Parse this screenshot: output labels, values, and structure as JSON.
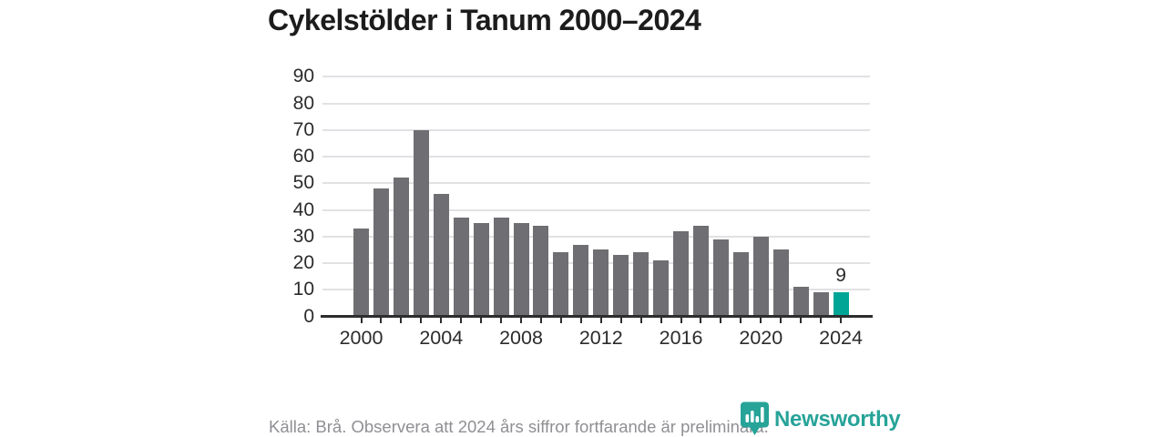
{
  "title": "Cykelstölder i Tanum 2000–2024",
  "footer": {
    "source_note": "Källa: Brå. Observera att 2024 års siffror fortfarande är preliminära.",
    "brand": "Newsworthy"
  },
  "colors": {
    "bar": "#6f6e73",
    "highlight": "#00a596",
    "brand_teal": "#27a398",
    "gridline": "#e2e2e5",
    "axis": "#2d2d2e",
    "text_dark": "#1c1c1c",
    "tick_text": "#2b2b2b",
    "muted": "#8f8f94",
    "bg": "#ffffff"
  },
  "chart_data": {
    "type": "bar",
    "title": "Cykelstölder i Tanum 2000–2024",
    "xlabel": "",
    "ylabel": "",
    "categories": [
      2000,
      2001,
      2002,
      2003,
      2004,
      2005,
      2006,
      2007,
      2008,
      2009,
      2010,
      2011,
      2012,
      2013,
      2014,
      2015,
      2016,
      2017,
      2018,
      2019,
      2020,
      2021,
      2022,
      2023,
      2024
    ],
    "values": [
      33,
      48,
      52,
      70,
      46,
      37,
      35,
      37,
      35,
      34,
      24,
      27,
      25,
      23,
      24,
      21,
      32,
      34,
      29,
      24,
      30,
      25,
      11,
      9,
      9
    ],
    "ylim": [
      0,
      90
    ],
    "ytick_step": 10,
    "xtick_labels": [
      2000,
      2004,
      2008,
      2012,
      2016,
      2020,
      2024
    ],
    "grid": true,
    "legend": false,
    "highlight_index": 24,
    "highlight_label": "9",
    "bar_color": "#6f6e73",
    "highlight_color": "#00a596"
  }
}
